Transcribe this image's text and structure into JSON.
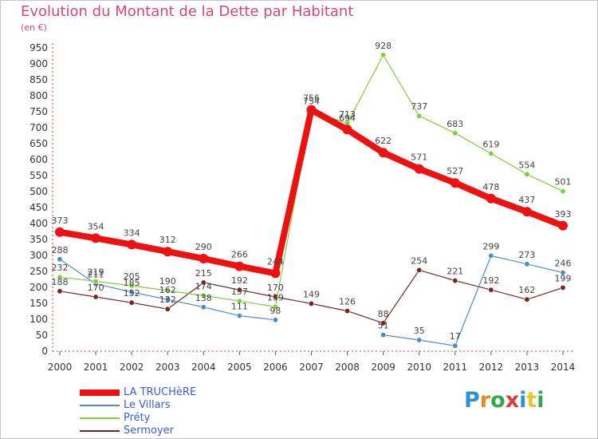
{
  "title": "Evolution du Montant de la Dette par Habitant",
  "unit_label": "(en €)",
  "logo": {
    "text": "Proxiti",
    "letters": [
      "P",
      "r",
      "o",
      "x",
      "i",
      "t",
      "i"
    ],
    "colors": [
      "#2f8fd9",
      "#e8862b",
      "#2fa84f",
      "#d93b3b",
      "#2f8fd9",
      "#e8c52b",
      "#2fa84f"
    ]
  },
  "chart_data": {
    "type": "line",
    "title": "Evolution du Montant de la Dette par Habitant",
    "ylabel": "(en €)",
    "xlabel": "",
    "ylim": [
      0,
      950
    ],
    "yticks": [
      0,
      50,
      100,
      150,
      200,
      250,
      300,
      350,
      400,
      450,
      500,
      550,
      600,
      650,
      700,
      750,
      800,
      850,
      900,
      950
    ],
    "x": [
      2000,
      2001,
      2002,
      2003,
      2004,
      2005,
      2006,
      2007,
      2008,
      2009,
      2010,
      2011,
      2012,
      2013,
      2014
    ],
    "grid": false,
    "legend_position": "bottom-left",
    "series": [
      {
        "name": "Sermoyer",
        "color": "#7a2222",
        "width": 1.2,
        "marker": 3.2,
        "values": [
          188,
          170,
          152,
          132,
          215,
          192,
          170,
          149,
          126,
          88,
          254,
          221,
          192,
          162,
          199
        ],
        "labels": [
          "188",
          "170",
          "152",
          "132",
          "215",
          "192",
          "170",
          "149",
          "126",
          "88",
          "254",
          "221",
          "192",
          "162",
          "199"
        ]
      },
      {
        "name": "Le Villars",
        "color": "#4a8cc9",
        "width": 1.2,
        "marker": 3.2,
        "values": [
          288,
          211,
          185,
          162,
          138,
          111,
          98,
          null,
          null,
          51,
          35,
          17,
          299,
          273,
          246
        ],
        "labels": [
          "288",
          "211",
          "185",
          "162",
          "138",
          "111",
          "98",
          "",
          "",
          "51",
          "35",
          "17",
          "299",
          "273",
          "246"
        ]
      },
      {
        "name": "Préty",
        "color": "#7fcf3a",
        "width": 1.2,
        "marker": 3.2,
        "values": [
          232,
          219,
          205,
          190,
          174,
          157,
          139,
          754,
          713,
          928,
          737,
          683,
          619,
          554,
          501
        ],
        "labels": [
          "232",
          "219",
          "205",
          "190",
          "174",
          "157",
          "139",
          "754",
          "713",
          "928",
          "737",
          "683",
          "619",
          "554",
          "501"
        ]
      },
      {
        "name": "LA TRUCHèRE",
        "color": "#ee1111",
        "width": 8,
        "marker": 6,
        "values": [
          373,
          354,
          334,
          312,
          290,
          266,
          244,
          756,
          694,
          622,
          571,
          527,
          478,
          437,
          393
        ],
        "labels": [
          "373",
          "354",
          "334",
          "312",
          "290",
          "266",
          "244",
          "756",
          "694",
          "622",
          "571",
          "527",
          "478",
          "437",
          "393"
        ]
      }
    ],
    "legend_order": [
      "LA TRUCHèRE",
      "Le Villars",
      "Préty",
      "Sermoyer"
    ]
  }
}
